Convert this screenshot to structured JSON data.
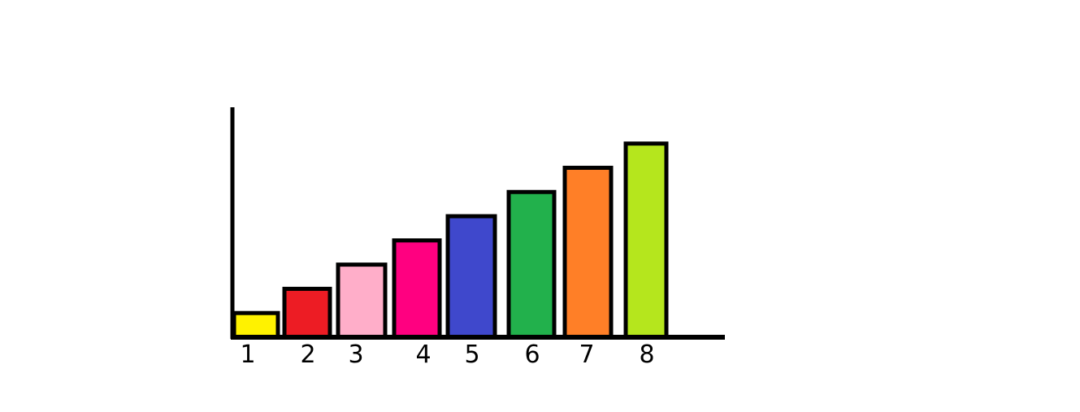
{
  "chart_data": {
    "type": "bar",
    "categories": [
      "1",
      "2",
      "3",
      "4",
      "5",
      "6",
      "7",
      "8"
    ],
    "values": [
      1,
      2,
      3,
      4,
      5,
      6,
      7,
      8
    ],
    "colors": [
      "#fff200",
      "#ed1c24",
      "#ffaec9",
      "#ff0080",
      "#3f48cc",
      "#22b14c",
      "#ff7f27",
      "#b5e61d"
    ],
    "ylim": [
      0,
      9.5
    ],
    "grid": false,
    "legend": "none"
  }
}
